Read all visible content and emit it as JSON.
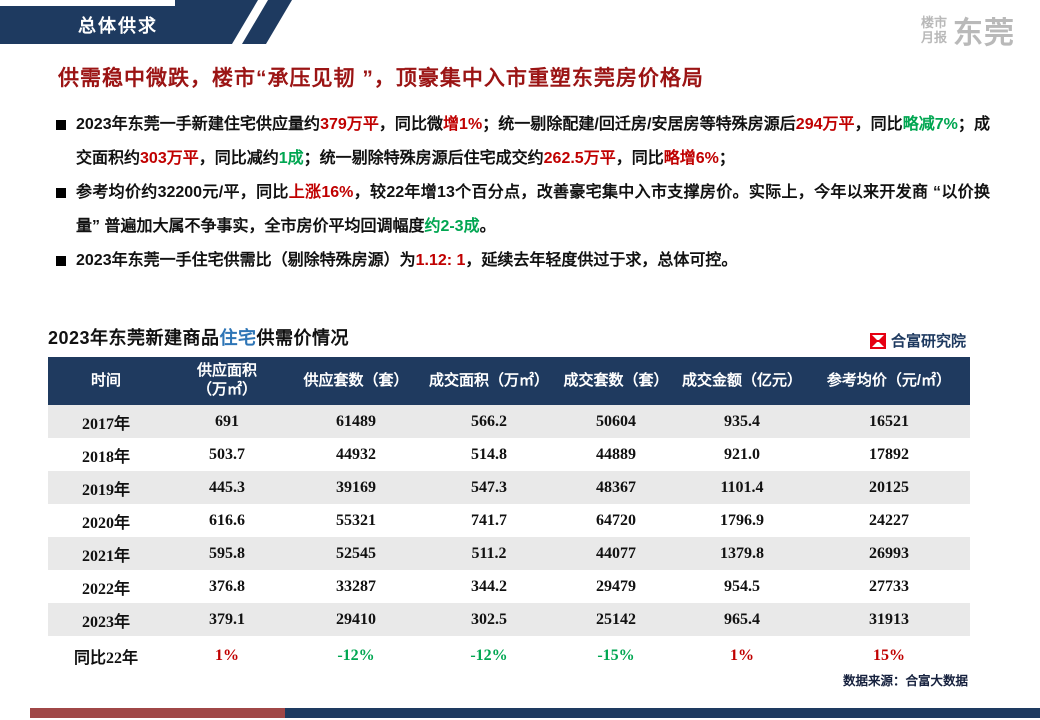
{
  "theme": {
    "navy": "#1e3a60",
    "title_red": "#9b1414",
    "highlight_red": "#c00000",
    "highlight_green": "#00a651",
    "highlight_blue": "#2e75b6",
    "stripe_gray": "#e9e9e9",
    "logo_red": "#e60012"
  },
  "banner": {
    "label": "总体供求"
  },
  "masthead": {
    "small_top": "楼市",
    "small_bottom": "月报",
    "city": "东莞"
  },
  "title": "供需稳中微跌，楼市“承压见韧 ”，顶豪集中入市重塑东莞房价格局",
  "bullets": [
    {
      "segments": [
        {
          "t": "2023年东莞一手新建住宅供应量约",
          "c": "black"
        },
        {
          "t": "379万平",
          "c": "red"
        },
        {
          "t": "，同比微",
          "c": "black"
        },
        {
          "t": "增1%",
          "c": "red"
        },
        {
          "t": "；统一剔除配建/回迁房/安居房等特殊房源后",
          "c": "black"
        },
        {
          "t": "294万平",
          "c": "red"
        },
        {
          "t": "，同比",
          "c": "black"
        },
        {
          "t": "略减7%",
          "c": "green"
        },
        {
          "t": "；成交面积约",
          "c": "black"
        },
        {
          "t": "303万平",
          "c": "red"
        },
        {
          "t": "，同比减约",
          "c": "black"
        },
        {
          "t": "1成",
          "c": "green"
        },
        {
          "t": "；统一剔除特殊房源后住宅成交约",
          "c": "black"
        },
        {
          "t": "262.5万平",
          "c": "red"
        },
        {
          "t": "，同比",
          "c": "black"
        },
        {
          "t": "略增6%",
          "c": "red"
        },
        {
          "t": "；",
          "c": "black"
        }
      ]
    },
    {
      "segments": [
        {
          "t": "参考均价约32200元/平，同比",
          "c": "black"
        },
        {
          "t": "上涨16%",
          "c": "red"
        },
        {
          "t": "，较22年增13个百分点，改善豪宅集中入市支撑房价。实际上，今年以来开发商 “以价换量” 普遍加大属不争事实，全市房价平均回调幅度",
          "c": "black"
        },
        {
          "t": "约2-3成",
          "c": "green"
        },
        {
          "t": "。",
          "c": "black"
        }
      ]
    },
    {
      "segments": [
        {
          "t": "2023年东莞一手住宅供需比（剔除特殊房源）为",
          "c": "black"
        },
        {
          "t": "1.12: 1",
          "c": "red"
        },
        {
          "t": "，延续去年轻度供过于求，总体可控。",
          "c": "black"
        }
      ]
    }
  ],
  "table_section": {
    "title_parts": [
      {
        "t": "2023年东莞新建商品",
        "c": "black"
      },
      {
        "t": "住宅",
        "c": "blue"
      },
      {
        "t": "供需价情况",
        "c": "black"
      }
    ],
    "brand": "合富研究院",
    "headers": [
      "时间",
      "供应面积\n（万㎡）",
      "供应套数（套）",
      "成交面积（万㎡）",
      "成交套数（套）",
      "成交金额（亿元）",
      "参考均价（元/㎡）"
    ],
    "rows": [
      [
        "2017年",
        "691",
        "61489",
        "566.2",
        "50604",
        "935.4",
        "16521"
      ],
      [
        "2018年",
        "503.7",
        "44932",
        "514.8",
        "44889",
        "921.0",
        "17892"
      ],
      [
        "2019年",
        "445.3",
        "39169",
        "547.3",
        "48367",
        "1101.4",
        "20125"
      ],
      [
        "2020年",
        "616.6",
        "55321",
        "741.7",
        "64720",
        "1796.9",
        "24227"
      ],
      [
        "2021年",
        "595.8",
        "52545",
        "511.2",
        "44077",
        "1379.8",
        "26993"
      ],
      [
        "2022年",
        "376.8",
        "33287",
        "344.2",
        "29479",
        "954.5",
        "27733"
      ],
      [
        "2023年",
        "379.1",
        "29410",
        "302.5",
        "25142",
        "965.4",
        "31913"
      ]
    ],
    "yoy": {
      "label": "同比22年",
      "values": [
        {
          "t": "1%",
          "c": "red"
        },
        {
          "t": "-12%",
          "c": "green"
        },
        {
          "t": "-12%",
          "c": "green"
        },
        {
          "t": "-15%",
          "c": "green"
        },
        {
          "t": "1%",
          "c": "red"
        },
        {
          "t": "15%",
          "c": "red"
        }
      ]
    }
  },
  "source": "数据来源：合富大数据"
}
